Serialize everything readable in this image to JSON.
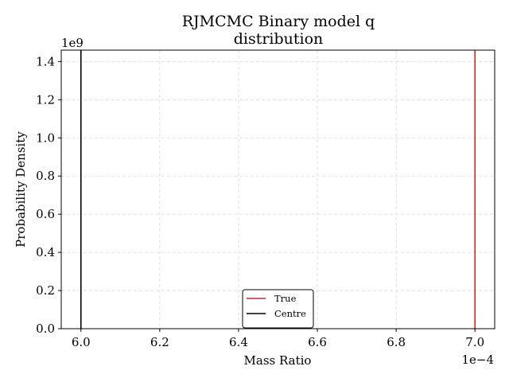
{
  "chart_data": {
    "type": "line",
    "title_lines": [
      "RJMCMC Binary model q",
      "distribution"
    ],
    "xlabel": "Mass Ratio",
    "ylabel": "Probability Density",
    "x_offset_label": "1e−4",
    "y_offset_label": "1e9",
    "xlim": [
      5.95,
      7.05
    ],
    "ylim": [
      0,
      1.46
    ],
    "x_ticks": [
      6.0,
      6.2,
      6.4,
      6.6,
      6.8,
      7.0
    ],
    "x_tick_labels": [
      "6.0",
      "6.2",
      "6.4",
      "6.6",
      "6.8",
      "7.0"
    ],
    "y_ticks": [
      0.0,
      0.2,
      0.4,
      0.6,
      0.8,
      1.0,
      1.2,
      1.4
    ],
    "y_tick_labels": [
      "0.0",
      "0.2",
      "0.4",
      "0.6",
      "0.8",
      "1.0",
      "1.2",
      "1.4"
    ],
    "grid": true,
    "legend_position": "bottom-center",
    "series": [
      {
        "name": "True",
        "kind": "vline",
        "x": 7.0,
        "color": "#d62728"
      },
      {
        "name": "Centre",
        "kind": "vline",
        "x": 6.0,
        "color": "#000000"
      }
    ]
  }
}
